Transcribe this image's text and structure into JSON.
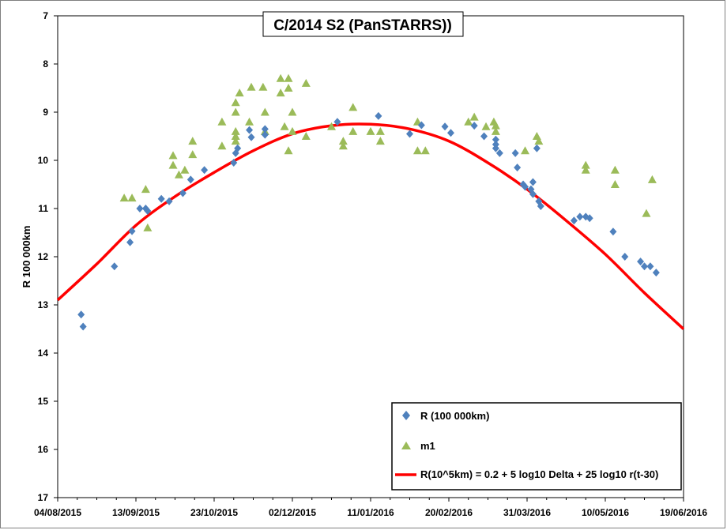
{
  "chart_data": {
    "type": "scatter",
    "title": "C/2014 S2 (PanSTARRS))",
    "xlabel": "",
    "ylabel": "R 100 000km",
    "y_axis_inverted": true,
    "ylim": [
      7,
      17
    ],
    "yticks": [
      "7",
      "8",
      "9",
      "10",
      "11",
      "12",
      "13",
      "14",
      "15",
      "16",
      "17"
    ],
    "xlim": [
      "2015-08-04",
      "2016-06-19"
    ],
    "xticks": [
      "04/08/2015",
      "13/09/2015",
      "23/10/2015",
      "02/12/2015",
      "11/01/2016",
      "20/02/2016",
      "31/03/2016",
      "10/05/2016",
      "19/06/2016"
    ],
    "grid": false,
    "legend_position": "bottom-right",
    "series": [
      {
        "name": "R (100 000km)",
        "marker": "diamond",
        "color": "#4f81bd",
        "points": [
          {
            "x": "2015-08-16",
            "y": 13.2
          },
          {
            "x": "2015-08-17",
            "y": 13.45
          },
          {
            "x": "2015-09-02",
            "y": 12.2
          },
          {
            "x": "2015-09-10",
            "y": 11.7
          },
          {
            "x": "2015-09-11",
            "y": 11.47
          },
          {
            "x": "2015-09-15",
            "y": 11.0
          },
          {
            "x": "2015-09-18",
            "y": 11.0
          },
          {
            "x": "2015-09-19",
            "y": 11.05
          },
          {
            "x": "2015-09-26",
            "y": 10.8
          },
          {
            "x": "2015-09-30",
            "y": 10.85
          },
          {
            "x": "2015-10-07",
            "y": 10.68
          },
          {
            "x": "2015-10-11",
            "y": 10.4
          },
          {
            "x": "2015-10-18",
            "y": 10.2
          },
          {
            "x": "2015-11-02",
            "y": 10.05
          },
          {
            "x": "2015-11-03",
            "y": 9.85
          },
          {
            "x": "2015-11-04",
            "y": 9.75
          },
          {
            "x": "2015-11-10",
            "y": 9.37
          },
          {
            "x": "2015-11-11",
            "y": 9.52
          },
          {
            "x": "2015-11-18",
            "y": 9.35
          },
          {
            "x": "2015-11-18",
            "y": 9.47
          },
          {
            "x": "2015-12-25",
            "y": 9.2
          },
          {
            "x": "2016-01-15",
            "y": 9.08
          },
          {
            "x": "2016-01-31",
            "y": 9.45
          },
          {
            "x": "2016-02-06",
            "y": 9.27
          },
          {
            "x": "2016-02-18",
            "y": 9.3
          },
          {
            "x": "2016-02-21",
            "y": 9.43
          },
          {
            "x": "2016-03-04",
            "y": 9.28
          },
          {
            "x": "2016-03-09",
            "y": 9.5
          },
          {
            "x": "2016-03-15",
            "y": 9.57
          },
          {
            "x": "2016-03-15",
            "y": 9.67
          },
          {
            "x": "2016-03-15",
            "y": 9.75
          },
          {
            "x": "2016-03-17",
            "y": 9.85
          },
          {
            "x": "2016-03-25",
            "y": 9.85
          },
          {
            "x": "2016-03-26",
            "y": 10.15
          },
          {
            "x": "2016-03-29",
            "y": 10.5
          },
          {
            "x": "2016-03-30",
            "y": 10.55
          },
          {
            "x": "2016-04-02",
            "y": 10.6
          },
          {
            "x": "2016-04-03",
            "y": 10.7
          },
          {
            "x": "2016-04-03",
            "y": 10.45
          },
          {
            "x": "2016-04-05",
            "y": 9.75
          },
          {
            "x": "2016-04-06",
            "y": 10.85
          },
          {
            "x": "2016-04-07",
            "y": 10.95
          },
          {
            "x": "2016-04-24",
            "y": 11.25
          },
          {
            "x": "2016-04-27",
            "y": 11.17
          },
          {
            "x": "2016-04-30",
            "y": 11.17
          },
          {
            "x": "2016-05-02",
            "y": 11.2
          },
          {
            "x": "2016-05-14",
            "y": 11.48
          },
          {
            "x": "2016-05-20",
            "y": 12.0
          },
          {
            "x": "2016-05-28",
            "y": 12.1
          },
          {
            "x": "2016-05-30",
            "y": 12.2
          },
          {
            "x": "2016-06-02",
            "y": 12.2
          },
          {
            "x": "2016-06-05",
            "y": 12.33
          }
        ]
      },
      {
        "name": "m1",
        "marker": "triangle",
        "color": "#9bbb59",
        "points": [
          {
            "x": "2015-09-07",
            "y": 10.78
          },
          {
            "x": "2015-09-11",
            "y": 10.78
          },
          {
            "x": "2015-09-18",
            "y": 10.6
          },
          {
            "x": "2015-09-19",
            "y": 11.4
          },
          {
            "x": "2015-10-02",
            "y": 10.1
          },
          {
            "x": "2015-10-02",
            "y": 9.9
          },
          {
            "x": "2015-10-05",
            "y": 10.3
          },
          {
            "x": "2015-10-08",
            "y": 10.2
          },
          {
            "x": "2015-10-12",
            "y": 9.88
          },
          {
            "x": "2015-10-12",
            "y": 9.6
          },
          {
            "x": "2015-10-27",
            "y": 9.7
          },
          {
            "x": "2015-10-27",
            "y": 9.2
          },
          {
            "x": "2015-11-03",
            "y": 9.6
          },
          {
            "x": "2015-11-03",
            "y": 9.5
          },
          {
            "x": "2015-11-03",
            "y": 9.4
          },
          {
            "x": "2015-11-03",
            "y": 9.0
          },
          {
            "x": "2015-11-03",
            "y": 8.8
          },
          {
            "x": "2015-11-05",
            "y": 8.6
          },
          {
            "x": "2015-11-10",
            "y": 9.2
          },
          {
            "x": "2015-11-11",
            "y": 8.48
          },
          {
            "x": "2015-11-17",
            "y": 8.48
          },
          {
            "x": "2015-11-18",
            "y": 9.0
          },
          {
            "x": "2015-11-18",
            "y": 9.4
          },
          {
            "x": "2015-11-26",
            "y": 8.3
          },
          {
            "x": "2015-11-26",
            "y": 8.6
          },
          {
            "x": "2015-11-28",
            "y": 9.3
          },
          {
            "x": "2015-11-30",
            "y": 9.8
          },
          {
            "x": "2015-11-30",
            "y": 8.3
          },
          {
            "x": "2015-11-30",
            "y": 8.5
          },
          {
            "x": "2015-12-02",
            "y": 9.4
          },
          {
            "x": "2015-12-02",
            "y": 9.0
          },
          {
            "x": "2015-12-09",
            "y": 8.4
          },
          {
            "x": "2015-12-09",
            "y": 9.5
          },
          {
            "x": "2015-12-22",
            "y": 9.3
          },
          {
            "x": "2015-12-28",
            "y": 9.6
          },
          {
            "x": "2015-12-28",
            "y": 9.7
          },
          {
            "x": "2016-01-02",
            "y": 8.9
          },
          {
            "x": "2016-01-02",
            "y": 9.4
          },
          {
            "x": "2016-01-11",
            "y": 9.4
          },
          {
            "x": "2016-01-16",
            "y": 9.4
          },
          {
            "x": "2016-01-16",
            "y": 9.6
          },
          {
            "x": "2016-02-04",
            "y": 9.8
          },
          {
            "x": "2016-02-04",
            "y": 9.2
          },
          {
            "x": "2016-02-08",
            "y": 9.8
          },
          {
            "x": "2016-03-01",
            "y": 9.2
          },
          {
            "x": "2016-03-04",
            "y": 9.1
          },
          {
            "x": "2016-03-10",
            "y": 9.3
          },
          {
            "x": "2016-03-14",
            "y": 9.2
          },
          {
            "x": "2016-03-15",
            "y": 9.28
          },
          {
            "x": "2016-03-15",
            "y": 9.4
          },
          {
            "x": "2016-03-30",
            "y": 9.8
          },
          {
            "x": "2016-04-05",
            "y": 9.5
          },
          {
            "x": "2016-04-06",
            "y": 9.6
          },
          {
            "x": "2016-04-30",
            "y": 10.1
          },
          {
            "x": "2016-04-30",
            "y": 10.2
          },
          {
            "x": "2016-05-15",
            "y": 10.2
          },
          {
            "x": "2016-05-15",
            "y": 10.5
          },
          {
            "x": "2016-05-31",
            "y": 11.1
          },
          {
            "x": "2016-06-03",
            "y": 10.4
          }
        ]
      },
      {
        "name": "R(10^5km) = 0.2 + 5 log10 Delta + 25  log10 r(t-30)",
        "marker": "line",
        "color": "#ff0000",
        "points": [
          {
            "x": "2015-08-04",
            "y": 12.9
          },
          {
            "x": "2015-08-24",
            "y": 12.15
          },
          {
            "x": "2015-09-13",
            "y": 11.35
          },
          {
            "x": "2015-10-03",
            "y": 10.75
          },
          {
            "x": "2015-10-23",
            "y": 10.25
          },
          {
            "x": "2015-11-12",
            "y": 9.8
          },
          {
            "x": "2015-12-02",
            "y": 9.45
          },
          {
            "x": "2015-12-22",
            "y": 9.28
          },
          {
            "x": "2016-01-11",
            "y": 9.25
          },
          {
            "x": "2016-01-31",
            "y": 9.35
          },
          {
            "x": "2016-02-20",
            "y": 9.6
          },
          {
            "x": "2016-03-11",
            "y": 10.05
          },
          {
            "x": "2016-03-31",
            "y": 10.6
          },
          {
            "x": "2016-04-20",
            "y": 11.25
          },
          {
            "x": "2016-05-10",
            "y": 11.95
          },
          {
            "x": "2016-05-30",
            "y": 12.75
          },
          {
            "x": "2016-06-19",
            "y": 13.5
          }
        ]
      }
    ]
  }
}
